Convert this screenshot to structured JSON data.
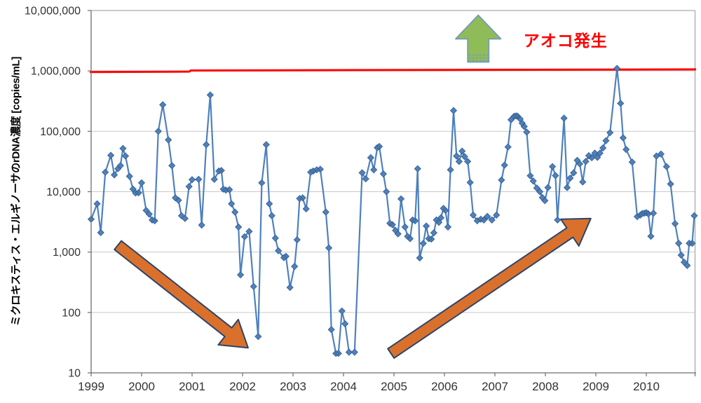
{
  "chart": {
    "y_axis_title": "ミクロキスティス・エルギノーサのrDNA濃度 [copies/mL]",
    "annotation_text": "アオコ発生"
  },
  "chart_data": {
    "type": "line",
    "title": "",
    "xlabel": "",
    "ylabel": "ミクロキスティス・エルギノーサのrDNA濃度 [copies/mL]",
    "y_scale": "log",
    "ylim": [
      10,
      10000000
    ],
    "xlim": [
      1999,
      2010.97
    ],
    "grid": "horizontal",
    "legend": "none",
    "y_tick_values": [
      10000000,
      1000000,
      100000,
      10000,
      1000,
      100,
      10
    ],
    "y_tick_labels": [
      "10,000,000",
      "1,000,000",
      "100,000",
      "10,000",
      "1,000",
      "100",
      "10"
    ],
    "x_tick_values": [
      1999,
      2000,
      2001,
      2002,
      2003,
      2004,
      2005,
      2006,
      2007,
      2008,
      2009,
      2010
    ],
    "x_tick_labels": [
      "1999",
      "2000",
      "2001",
      "2002",
      "2003",
      "2004",
      "2005",
      "2006",
      "2007",
      "2008",
      "2009",
      "2010"
    ],
    "threshold": {
      "value": 1000000,
      "color": "#FF0000",
      "label": "アオコ発生"
    },
    "style": {
      "series_color": "#4F81BD",
      "series_marker_stroke": "#3A6595",
      "grid_color": "#C9C9C9",
      "axis_color": "#6E6E6E",
      "border_color": "#ABABAB",
      "tick_label_color": "#333333",
      "trend_arrow_fill": "#D9712C",
      "trend_arrow_stroke": "#2E4369",
      "block_arrow_fill": "#8FBC58",
      "block_arrow_stroke": "#6D96C3",
      "annotation_color": "#FF0000"
    },
    "annotations": [
      {
        "type": "text",
        "text": "アオコ発生",
        "color": "#FF0000",
        "t": 2008.4,
        "v": 3300000
      },
      {
        "type": "block-arrow-up",
        "t": 2006.67,
        "v_from": 1400000,
        "v_to": 8400000,
        "width_years": 0.9,
        "shaft_width_years": 0.42
      },
      {
        "type": "trend-arrow",
        "direction": "decreasing",
        "from_t": 1999.53,
        "from_v": 1300,
        "to_t": 2002.11,
        "to_v": 26
      },
      {
        "type": "trend-arrow",
        "direction": "increasing",
        "from_t": 2004.94,
        "from_v": 21,
        "to_t": 2008.9,
        "to_v": 3600
      }
    ],
    "series": [
      {
        "marker": "diamond",
        "points": [
          [
            1999.0,
            3500
          ],
          [
            1999.12,
            6300
          ],
          [
            1999.19,
            2100
          ],
          [
            1999.28,
            21000
          ],
          [
            1999.39,
            40000
          ],
          [
            1999.46,
            19000
          ],
          [
            1999.53,
            24000
          ],
          [
            1999.58,
            27000
          ],
          [
            1999.63,
            52000
          ],
          [
            1999.68,
            39000
          ],
          [
            1999.76,
            18000
          ],
          [
            1999.83,
            11000
          ],
          [
            1999.88,
            9500
          ],
          [
            1999.94,
            9600
          ],
          [
            2000.0,
            14000
          ],
          [
            2000.09,
            4900
          ],
          [
            2000.15,
            4250
          ],
          [
            2000.21,
            3400
          ],
          [
            2000.26,
            3300
          ],
          [
            2000.33,
            100000
          ],
          [
            2000.42,
            275000
          ],
          [
            2000.53,
            72000
          ],
          [
            2000.6,
            27000
          ],
          [
            2000.67,
            7900
          ],
          [
            2000.73,
            7200
          ],
          [
            2000.79,
            4000
          ],
          [
            2000.86,
            3600
          ],
          [
            2000.94,
            12200
          ],
          [
            2001.0,
            15800
          ],
          [
            2001.13,
            16000
          ],
          [
            2001.19,
            2800
          ],
          [
            2001.28,
            60000
          ],
          [
            2001.36,
            400000
          ],
          [
            2001.44,
            16000
          ],
          [
            2001.53,
            22000
          ],
          [
            2001.58,
            22500
          ],
          [
            2001.62,
            11000
          ],
          [
            2001.67,
            10600
          ],
          [
            2001.74,
            10800
          ],
          [
            2001.78,
            6300
          ],
          [
            2001.85,
            4600
          ],
          [
            2001.92,
            2600
          ],
          [
            2001.96,
            420
          ],
          [
            2002.04,
            1800
          ],
          [
            2002.13,
            2200
          ],
          [
            2002.22,
            270
          ],
          [
            2002.31,
            40
          ],
          [
            2002.38,
            14000
          ],
          [
            2002.47,
            60000
          ],
          [
            2002.53,
            6300
          ],
          [
            2002.58,
            4000
          ],
          [
            2002.65,
            1700
          ],
          [
            2002.71,
            1050
          ],
          [
            2002.82,
            810
          ],
          [
            2002.86,
            850
          ],
          [
            2002.94,
            260
          ],
          [
            2003.03,
            580
          ],
          [
            2003.08,
            1600
          ],
          [
            2003.13,
            7700
          ],
          [
            2003.19,
            7900
          ],
          [
            2003.26,
            5200
          ],
          [
            2003.35,
            21000
          ],
          [
            2003.4,
            22000
          ],
          [
            2003.47,
            23000
          ],
          [
            2003.54,
            23500
          ],
          [
            2003.65,
            4600
          ],
          [
            2003.71,
            1170
          ],
          [
            2003.76,
            52
          ],
          [
            2003.85,
            21
          ],
          [
            2003.9,
            21
          ],
          [
            2003.97,
            106
          ],
          [
            2004.03,
            65
          ],
          [
            2004.11,
            22
          ],
          [
            2004.22,
            22
          ],
          [
            2004.37,
            20600
          ],
          [
            2004.44,
            16300
          ],
          [
            2004.54,
            36500
          ],
          [
            2004.6,
            23000
          ],
          [
            2004.67,
            53500
          ],
          [
            2004.71,
            56000
          ],
          [
            2004.79,
            19700
          ],
          [
            2004.85,
            10000
          ],
          [
            2004.92,
            3000
          ],
          [
            2004.97,
            2840
          ],
          [
            2005.03,
            2280
          ],
          [
            2005.08,
            2000
          ],
          [
            2005.14,
            7600
          ],
          [
            2005.22,
            2600
          ],
          [
            2005.27,
            1820
          ],
          [
            2005.32,
            1670
          ],
          [
            2005.37,
            3400
          ],
          [
            2005.42,
            3300
          ],
          [
            2005.47,
            24000
          ],
          [
            2005.51,
            800
          ],
          [
            2005.58,
            1390
          ],
          [
            2005.64,
            2700
          ],
          [
            2005.69,
            1670
          ],
          [
            2005.74,
            1640
          ],
          [
            2005.79,
            2090
          ],
          [
            2005.84,
            3400
          ],
          [
            2005.89,
            3100
          ],
          [
            2005.93,
            3700
          ],
          [
            2005.98,
            5300
          ],
          [
            2006.02,
            4900
          ],
          [
            2006.07,
            2600
          ],
          [
            2006.12,
            23000
          ],
          [
            2006.18,
            220000
          ],
          [
            2006.24,
            39000
          ],
          [
            2006.29,
            31600
          ],
          [
            2006.35,
            47000
          ],
          [
            2006.4,
            38000
          ],
          [
            2006.46,
            31600
          ],
          [
            2006.51,
            14200
          ],
          [
            2006.57,
            4100
          ],
          [
            2006.65,
            3300
          ],
          [
            2006.72,
            3500
          ],
          [
            2006.78,
            3400
          ],
          [
            2006.85,
            3900
          ],
          [
            2006.94,
            3400
          ],
          [
            2007.03,
            4100
          ],
          [
            2007.13,
            15600
          ],
          [
            2007.19,
            27500
          ],
          [
            2007.26,
            55000
          ],
          [
            2007.32,
            155000
          ],
          [
            2007.38,
            177000
          ],
          [
            2007.42,
            180000
          ],
          [
            2007.45,
            177000
          ],
          [
            2007.5,
            160000
          ],
          [
            2007.54,
            136000
          ],
          [
            2007.58,
            120000
          ],
          [
            2007.63,
            97000
          ],
          [
            2007.7,
            18400
          ],
          [
            2007.76,
            15000
          ],
          [
            2007.83,
            11500
          ],
          [
            2007.89,
            10000
          ],
          [
            2007.94,
            8000
          ],
          [
            2007.99,
            7100
          ],
          [
            2008.05,
            11700
          ],
          [
            2008.14,
            26000
          ],
          [
            2008.2,
            18500
          ],
          [
            2008.24,
            3400
          ],
          [
            2008.37,
            165000
          ],
          [
            2008.43,
            11700
          ],
          [
            2008.49,
            16800
          ],
          [
            2008.56,
            20500
          ],
          [
            2008.63,
            33000
          ],
          [
            2008.68,
            29000
          ],
          [
            2008.74,
            14500
          ],
          [
            2008.8,
            31600
          ],
          [
            2008.86,
            39500
          ],
          [
            2008.92,
            36500
          ],
          [
            2008.98,
            43500
          ],
          [
            2009.03,
            37000
          ],
          [
            2009.08,
            43500
          ],
          [
            2009.14,
            53000
          ],
          [
            2009.2,
            70000
          ],
          [
            2009.28,
            95000
          ],
          [
            2009.42,
            1100000
          ],
          [
            2009.49,
            290000
          ],
          [
            2009.54,
            78000
          ],
          [
            2009.6,
            50000
          ],
          [
            2009.72,
            31000
          ],
          [
            2009.82,
            3870
          ],
          [
            2009.88,
            4100
          ],
          [
            2009.92,
            4350
          ],
          [
            2009.96,
            4400
          ],
          [
            2010.0,
            4500
          ],
          [
            2010.04,
            4300
          ],
          [
            2010.09,
            1830
          ],
          [
            2010.14,
            4400
          ],
          [
            2010.2,
            39000
          ],
          [
            2010.29,
            42000
          ],
          [
            2010.4,
            26000
          ],
          [
            2010.48,
            13400
          ],
          [
            2010.57,
            2960
          ],
          [
            2010.64,
            1400
          ],
          [
            2010.69,
            890
          ],
          [
            2010.75,
            680
          ],
          [
            2010.81,
            600
          ],
          [
            2010.85,
            1400
          ],
          [
            2010.91,
            1400
          ],
          [
            2010.95,
            4000
          ]
        ]
      }
    ]
  }
}
